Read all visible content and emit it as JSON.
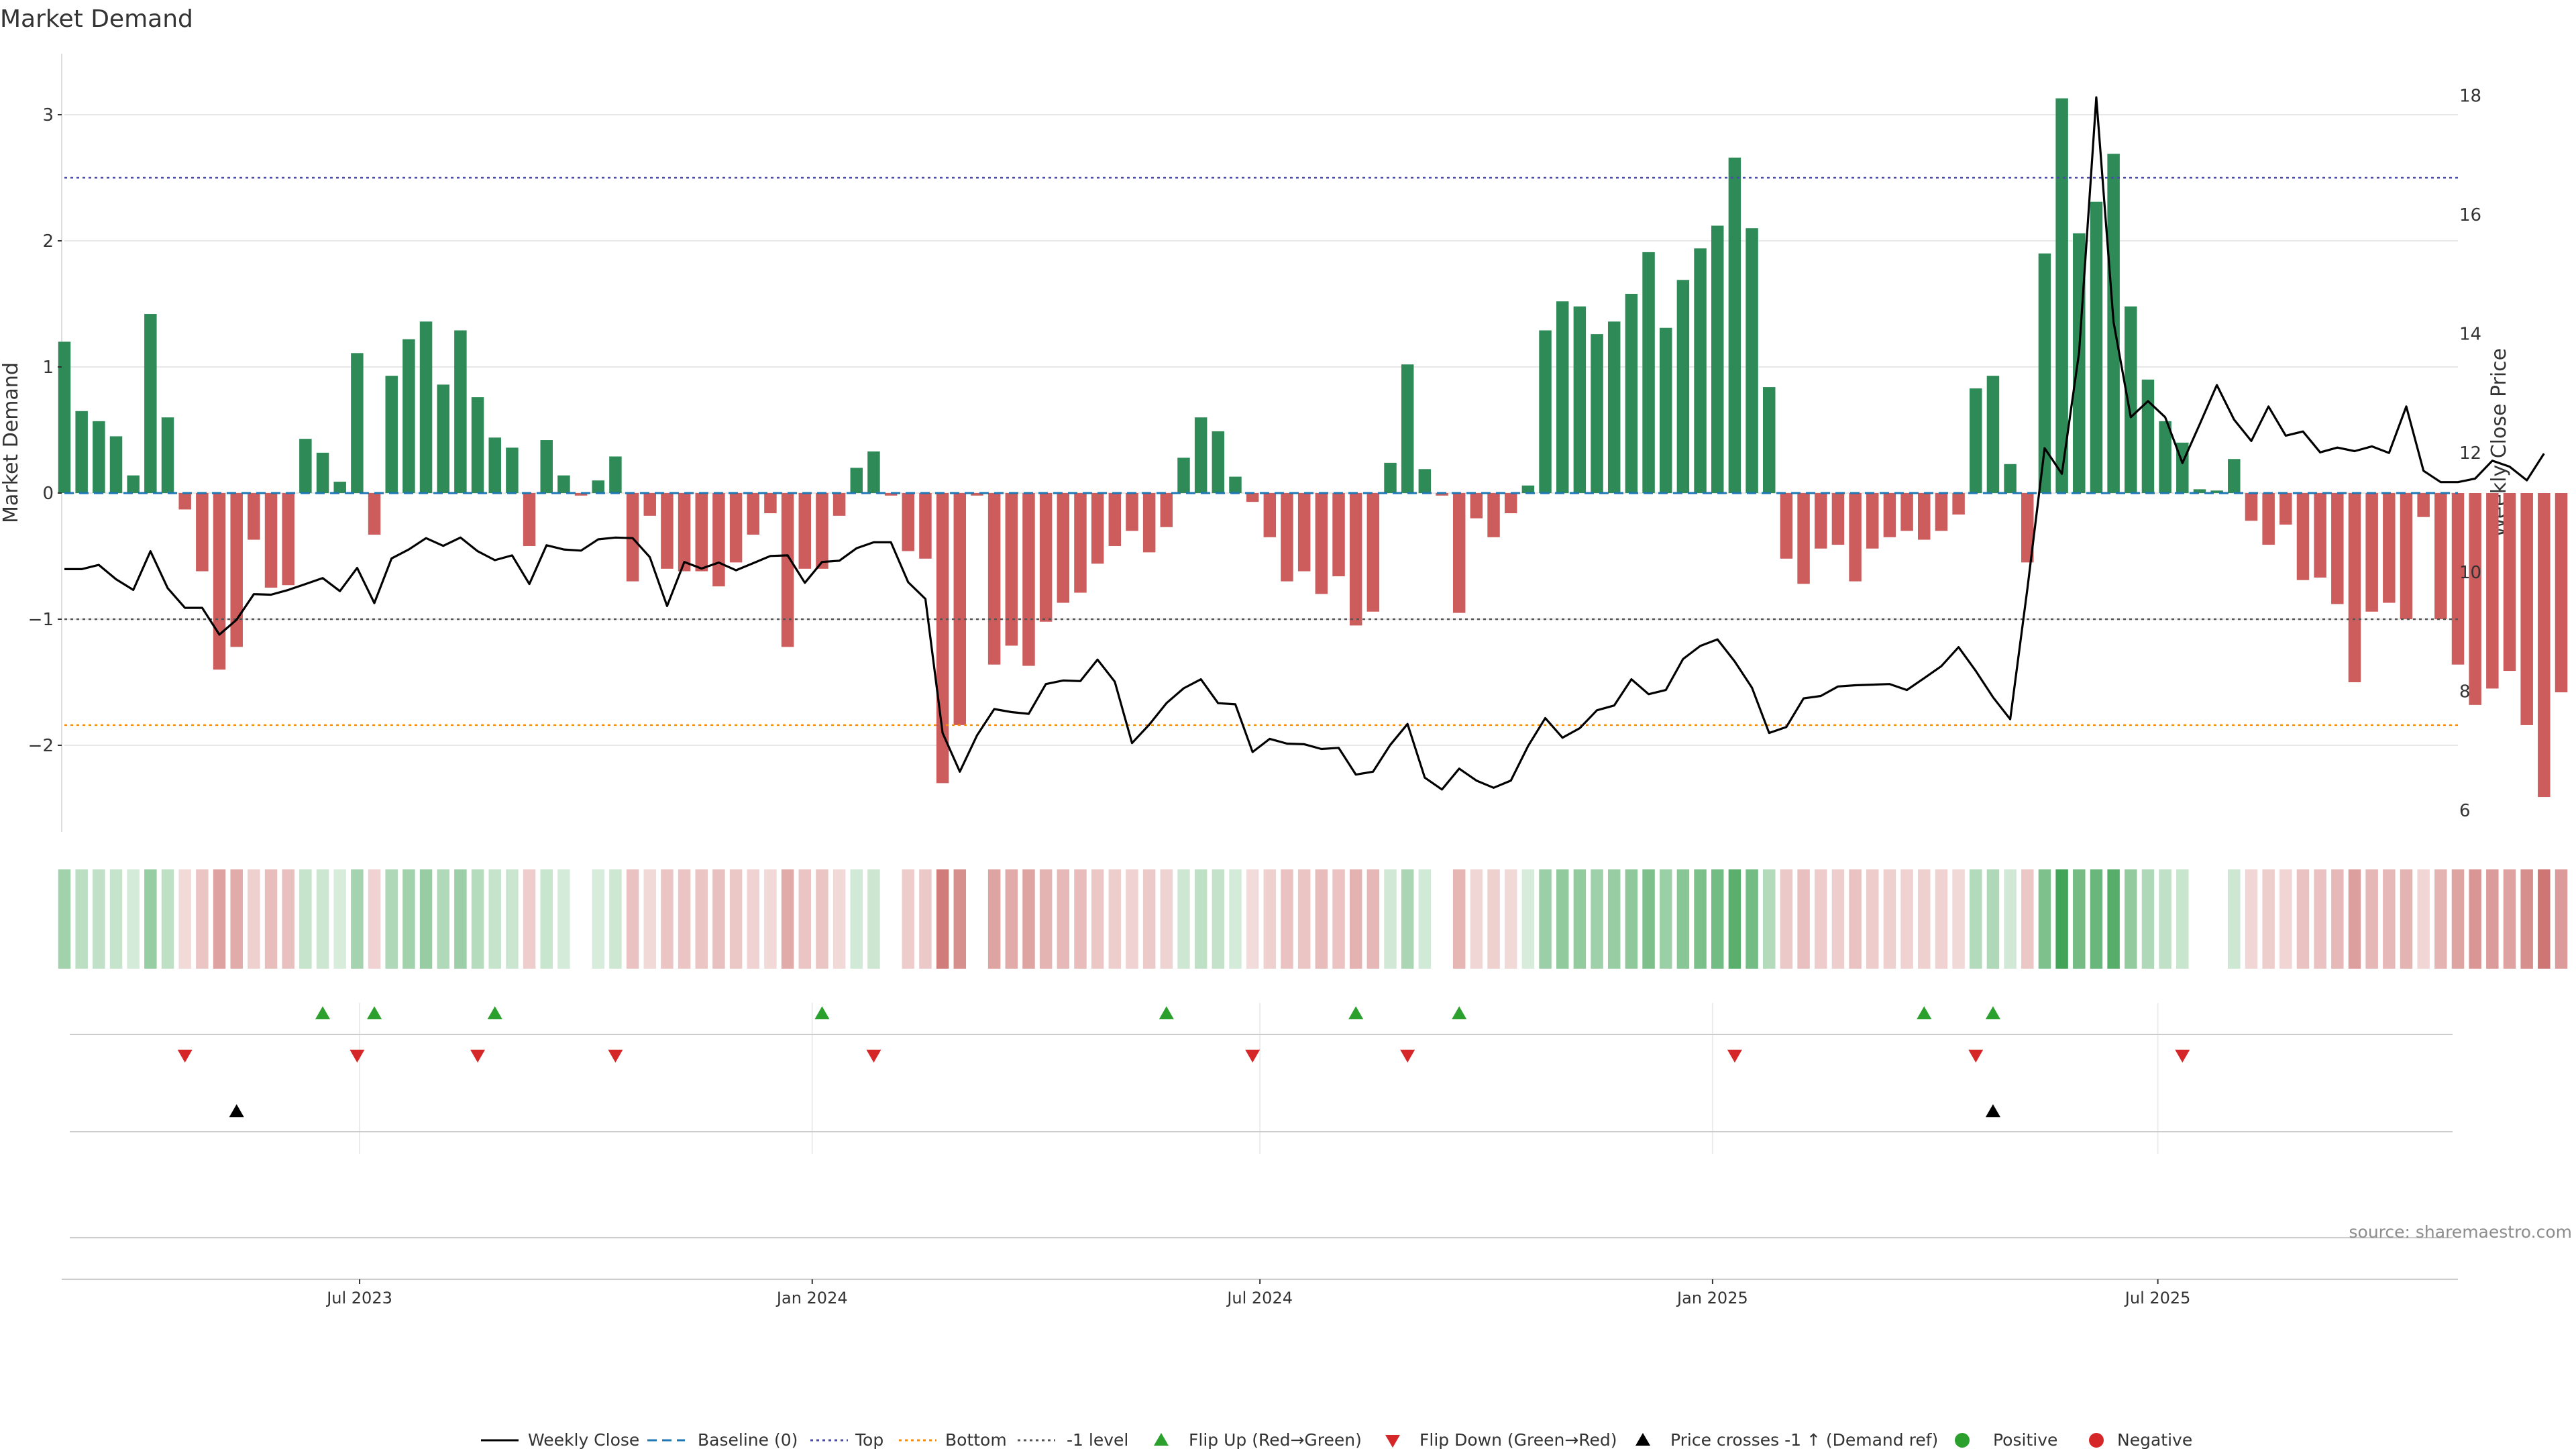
{
  "colors": {
    "positive_bar": "#2e8b57",
    "negative_bar": "#cd5c5c",
    "price_line": "#000000",
    "baseline": "#1f77b4",
    "top": "#4b4ba8",
    "bottom": "#ff8c00",
    "neg_one": "#555555",
    "flip_up": "#2ca02c",
    "flip_down": "#d62728",
    "price_cross": "#000000",
    "grid": "#e8e8e8",
    "heat_green": "#3aa050",
    "heat_red": "#c0504d"
  },
  "chart_data": {
    "type": "bar",
    "title": "Market Demand",
    "ylabel": "Market Demand",
    "y2label": "Weekly Close Price",
    "ylim": [
      -2.7,
      3.5
    ],
    "y2lim": [
      5.9,
      18.2
    ],
    "yticks": [
      3,
      2,
      1,
      0,
      -1,
      -2
    ],
    "ytick_labels": [
      "3",
      "2",
      "1",
      "0",
      "−1",
      "−2"
    ],
    "y2ticks": [
      18,
      16,
      14,
      12,
      10,
      8,
      6
    ],
    "y2tick_labels": [
      "18",
      "16",
      "14",
      "12",
      "10",
      "8",
      "6"
    ],
    "x_start": "2023-03-03",
    "x_end": "2025-10-31",
    "xticks": [
      "2023-07-01",
      "2024-01-01",
      "2024-07-01",
      "2025-01-01",
      "2025-07-01"
    ],
    "xtick_labels": [
      "Jul 2023",
      "Jan 2024",
      "Jul 2024",
      "Jan 2025",
      "Jul 2025"
    ],
    "grid": true,
    "reference_lines": {
      "baseline": 0,
      "top": 2.5,
      "bottom": -1.84,
      "neg_one": -1
    },
    "dates": [
      "2023-03-03",
      "2023-03-10",
      "2023-03-17",
      "2023-03-24",
      "2023-03-31",
      "2023-04-07",
      "2023-04-14",
      "2023-04-21",
      "2023-04-28",
      "2023-05-05",
      "2023-05-12",
      "2023-05-19",
      "2023-05-26",
      "2023-06-02",
      "2023-06-09",
      "2023-06-16",
      "2023-06-23",
      "2023-06-30",
      "2023-07-07",
      "2023-07-14",
      "2023-07-21",
      "2023-07-28",
      "2023-08-04",
      "2023-08-11",
      "2023-08-18",
      "2023-08-25",
      "2023-09-01",
      "2023-09-08",
      "2023-09-15",
      "2023-09-22",
      "2023-09-29",
      "2023-10-06",
      "2023-10-13",
      "2023-10-20",
      "2023-10-27",
      "2023-11-03",
      "2023-11-10",
      "2023-11-17",
      "2023-11-24",
      "2023-12-01",
      "2023-12-08",
      "2023-12-15",
      "2023-12-22",
      "2023-12-29",
      "2024-01-05",
      "2024-01-12",
      "2024-01-19",
      "2024-01-26",
      "2024-02-02",
      "2024-02-09",
      "2024-02-16",
      "2024-02-23",
      "2024-03-01",
      "2024-03-08",
      "2024-03-15",
      "2024-03-22",
      "2024-03-29",
      "2024-04-05",
      "2024-04-12",
      "2024-04-19",
      "2024-04-26",
      "2024-05-03",
      "2024-05-10",
      "2024-05-17",
      "2024-05-24",
      "2024-05-31",
      "2024-06-07",
      "2024-06-14",
      "2024-06-21",
      "2024-06-28",
      "2024-07-05",
      "2024-07-12",
      "2024-07-19",
      "2024-07-26",
      "2024-08-02",
      "2024-08-09",
      "2024-08-16",
      "2024-08-23",
      "2024-08-30",
      "2024-09-06",
      "2024-09-13",
      "2024-09-20",
      "2024-09-27",
      "2024-10-04",
      "2024-10-11",
      "2024-10-18",
      "2024-10-25",
      "2024-11-01",
      "2024-11-08",
      "2024-11-15",
      "2024-11-22",
      "2024-11-29",
      "2024-12-06",
      "2024-12-13",
      "2024-12-20",
      "2024-12-27",
      "2025-01-03",
      "2025-01-10",
      "2025-01-17",
      "2025-01-24",
      "2025-01-31",
      "2025-02-07",
      "2025-02-14",
      "2025-02-21",
      "2025-02-28",
      "2025-03-07",
      "2025-03-14",
      "2025-03-21",
      "2025-03-28",
      "2025-04-04",
      "2025-04-11",
      "2025-04-18",
      "2025-04-25",
      "2025-05-02",
      "2025-05-09",
      "2025-05-16",
      "2025-05-23",
      "2025-05-30",
      "2025-06-06",
      "2025-06-13",
      "2025-06-20",
      "2025-06-27",
      "2025-07-04",
      "2025-07-11",
      "2025-07-18",
      "2025-07-25",
      "2025-08-01",
      "2025-08-08",
      "2025-08-15",
      "2025-08-22",
      "2025-08-29",
      "2025-09-05",
      "2025-09-12",
      "2025-09-19",
      "2025-09-26",
      "2025-10-03",
      "2025-10-10",
      "2025-10-17",
      "2025-10-24",
      "2025-10-31"
    ],
    "demand": [
      1.2,
      0.65,
      0.57,
      0.45,
      0.14,
      1.42,
      0.6,
      -0.13,
      -0.62,
      -1.4,
      -1.22,
      -0.37,
      -0.75,
      -0.73,
      0.43,
      0.32,
      0.09,
      1.11,
      -0.33,
      0.93,
      1.22,
      1.36,
      0.86,
      1.29,
      0.76,
      0.44,
      0.36,
      -0.42,
      0.42,
      0.14,
      -0.02,
      0.1,
      0.29,
      -0.7,
      -0.18,
      -0.6,
      -0.62,
      -0.62,
      -0.74,
      -0.55,
      -0.33,
      -0.16,
      -1.22,
      -0.6,
      -0.6,
      -0.18,
      0.2,
      0.33,
      -0.02,
      -0.46,
      -0.52,
      -2.3,
      -1.84,
      -0.02,
      -1.36,
      -1.21,
      -1.37,
      -1.02,
      -0.87,
      -0.79,
      -0.56,
      -0.42,
      -0.3,
      -0.47,
      -0.27,
      0.28,
      0.6,
      0.49,
      0.13,
      -0.07,
      -0.35,
      -0.7,
      -0.62,
      -0.8,
      -0.66,
      -1.05,
      -0.94,
      0.24,
      1.02,
      0.19,
      -0.02,
      -0.95,
      -0.2,
      -0.35,
      -0.16,
      0.06,
      1.29,
      1.52,
      1.48,
      1.26,
      1.36,
      1.58,
      1.91,
      1.31,
      1.69,
      1.94,
      2.12,
      2.66,
      2.1,
      0.84,
      -0.52,
      -0.72,
      -0.44,
      -0.41,
      -0.7,
      -0.44,
      -0.35,
      -0.3,
      -0.37,
      -0.3,
      -0.17,
      0.83,
      0.93,
      0.23,
      -0.55,
      1.9,
      3.13,
      2.06,
      2.31,
      2.69,
      1.48,
      0.9,
      0.57,
      0.4,
      0.03,
      0.02,
      0.27,
      -0.22,
      -0.41,
      -0.25,
      -0.69,
      -0.67,
      -0.88,
      -1.5,
      -0.94,
      -0.87,
      -1.0,
      -0.19,
      -1.0,
      -1.36,
      -1.68,
      -1.55,
      -1.41,
      -1.84,
      -2.41,
      -1.58
    ],
    "price": [
      10.05,
      10.05,
      10.12,
      9.88,
      9.7,
      10.35,
      9.73,
      9.4,
      9.4,
      8.95,
      9.2,
      9.63,
      9.62,
      9.7,
      9.8,
      9.9,
      9.68,
      10.07,
      9.48,
      10.23,
      10.38,
      10.57,
      10.44,
      10.58,
      10.35,
      10.2,
      10.28,
      9.8,
      10.45,
      10.38,
      10.36,
      10.55,
      10.58,
      10.57,
      10.25,
      9.43,
      10.17,
      10.06,
      10.16,
      10.03,
      10.15,
      10.27,
      10.28,
      9.82,
      10.17,
      10.19,
      10.4,
      10.5,
      10.5,
      9.83,
      9.55,
      7.3,
      6.65,
      7.26,
      7.7,
      7.65,
      7.62,
      8.12,
      8.18,
      8.17,
      8.53,
      8.16,
      7.13,
      7.44,
      7.8,
      8.05,
      8.2,
      7.8,
      7.78,
      6.98,
      7.2,
      7.12,
      7.11,
      7.03,
      7.05,
      6.6,
      6.65,
      7.1,
      7.45,
      6.55,
      6.35,
      6.7,
      6.5,
      6.38,
      6.5,
      7.08,
      7.55,
      7.22,
      7.38,
      7.68,
      7.76,
      8.2,
      7.95,
      8.02,
      8.54,
      8.76,
      8.87,
      8.5,
      8.06,
      7.3,
      7.4,
      7.88,
      7.92,
      8.08,
      8.1,
      8.11,
      8.12,
      8.02,
      8.22,
      8.42,
      8.74,
      8.34,
      7.9,
      7.53,
      9.73,
      12.08,
      11.65,
      13.69,
      17.97,
      14.2,
      12.6,
      12.87,
      12.6,
      11.83,
      12.48,
      13.14,
      12.56,
      12.2,
      12.78,
      12.29,
      12.36,
      12.01,
      12.09,
      12.03,
      12.11,
      12,
      12.78,
      11.7,
      11.51,
      11.51,
      11.57,
      11.87,
      11.77,
      11.54,
      11.99
    ],
    "flip_up_dates": [
      "2023-06-16",
      "2023-07-07",
      "2023-08-25",
      "2024-01-05",
      "2024-05-24",
      "2024-08-09",
      "2024-09-20",
      "2025-03-28",
      "2025-04-25"
    ],
    "flip_down_dates": [
      "2023-04-21",
      "2023-06-30",
      "2023-08-18",
      "2023-10-13",
      "2024-01-26",
      "2024-06-28",
      "2024-08-30",
      "2025-01-10",
      "2025-04-18",
      "2025-07-11"
    ],
    "price_cross_dates": [
      "2023-05-12",
      "2025-04-25"
    ],
    "source": "source: sharemaestro.com",
    "legend": [
      {
        "label": "Weekly Close",
        "kind": "line-solid",
        "color": "price_line"
      },
      {
        "label": "Baseline (0)",
        "kind": "line-dashed",
        "color": "baseline"
      },
      {
        "label": "Top",
        "kind": "line-dotted",
        "color": "top"
      },
      {
        "label": "Bottom",
        "kind": "line-dotted",
        "color": "bottom"
      },
      {
        "label": "-1 level",
        "kind": "line-dotted",
        "color": "neg_one"
      },
      {
        "label": "Flip Up (Red→Green)",
        "kind": "tri-up",
        "color": "flip_up"
      },
      {
        "label": "Flip Down (Green→Red)",
        "kind": "tri-down",
        "color": "flip_down"
      },
      {
        "label": "Price crosses -1 ↑ (Demand ref)",
        "kind": "tri-up",
        "color": "price_cross"
      },
      {
        "label": "Positive",
        "kind": "dot",
        "color": "flip_up"
      },
      {
        "label": "Negative",
        "kind": "dot",
        "color": "flip_down"
      }
    ]
  }
}
